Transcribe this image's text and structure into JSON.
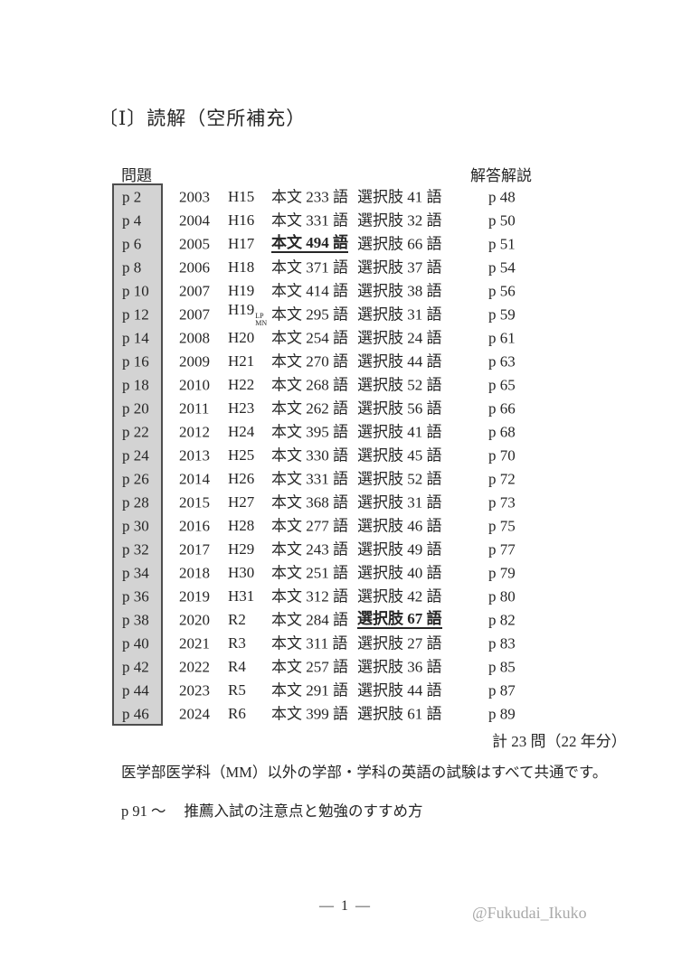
{
  "page": {
    "title": "〔Ⅰ〕読解（空所補充）",
    "problem_header": "問題",
    "answer_header": "解答解説",
    "total": "計 23 問（22 年分）",
    "note": "医学部医学科（MM）以外の学部・学科の英語の試験はすべて共通です。",
    "recommend_page": "p 91 ～",
    "recommend_title": "推薦入試の注意点と勉強のすすめ方",
    "page_number": "— 1 —",
    "watermark": "@Fukudai_Ikuko"
  },
  "colors": {
    "text": "#262626",
    "box_fill": "#d3d3d3",
    "box_border": "#4d4d4d",
    "watermark": "#a9a9a9"
  },
  "table": {
    "rows": [
      {
        "p": "p 2",
        "year": "2003",
        "era": "H15",
        "main": "本文 233 語",
        "choice": "選択肢 41 語",
        "ans": "p 48"
      },
      {
        "p": "p 4",
        "year": "2004",
        "era": "H16",
        "main": "本文 331 語",
        "choice": "選択肢 32 語",
        "ans": "p 50"
      },
      {
        "p": "p 6",
        "year": "2005",
        "era": "H17",
        "main": "本文 494 語",
        "main_emphasis": true,
        "choice": "選択肢 66 語",
        "ans": "p 51"
      },
      {
        "p": "p 8",
        "year": "2006",
        "era": "H18",
        "main": "本文 371 語",
        "choice": "選択肢 37 語",
        "ans": "p 54"
      },
      {
        "p": "p 10",
        "year": "2007",
        "era": "H19",
        "main": "本文 414 語",
        "choice": "選択肢 38 語",
        "ans": "p 56"
      },
      {
        "p": "p 12",
        "year": "2007",
        "era": "H19",
        "era_sup": "LP",
        "era_sub": "MN",
        "main": "本文 295 語",
        "choice": "選択肢 31 語",
        "ans": "p 59"
      },
      {
        "p": "p 14",
        "year": "2008",
        "era": "H20",
        "main": "本文 254 語",
        "choice": "選択肢 24 語",
        "ans": "p 61"
      },
      {
        "p": "p 16",
        "year": "2009",
        "era": "H21",
        "main": "本文 270 語",
        "choice": "選択肢 44 語",
        "ans": "p 63"
      },
      {
        "p": "p 18",
        "year": "2010",
        "era": "H22",
        "main": "本文 268 語",
        "choice": "選択肢 52 語",
        "ans": "p 65"
      },
      {
        "p": "p 20",
        "year": "2011",
        "era": "H23",
        "main": "本文 262 語",
        "choice": "選択肢 56 語",
        "ans": "p 66"
      },
      {
        "p": "p 22",
        "year": "2012",
        "era": "H24",
        "main": "本文 395 語",
        "choice": "選択肢 41 語",
        "ans": "p 68"
      },
      {
        "p": "p 24",
        "year": "2013",
        "era": "H25",
        "main": "本文 330 語",
        "choice": "選択肢 45 語",
        "ans": "p 70"
      },
      {
        "p": "p 26",
        "year": "2014",
        "era": "H26",
        "main": "本文 331 語",
        "choice": "選択肢 52 語",
        "ans": "p 72"
      },
      {
        "p": "p 28",
        "year": "2015",
        "era": "H27",
        "main": "本文 368 語",
        "choice": "選択肢 31 語",
        "ans": "p 73"
      },
      {
        "p": "p 30",
        "year": "2016",
        "era": "H28",
        "main": "本文 277 語",
        "choice": "選択肢 46 語",
        "ans": "p 75"
      },
      {
        "p": "p 32",
        "year": "2017",
        "era": "H29",
        "main": "本文 243 語",
        "choice": "選択肢 49 語",
        "ans": "p 77"
      },
      {
        "p": "p 34",
        "year": "2018",
        "era": "H30",
        "main": "本文 251 語",
        "choice": "選択肢 40 語",
        "ans": "p 79"
      },
      {
        "p": "p 36",
        "year": "2019",
        "era": "H31",
        "main": "本文 312 語",
        "choice": "選択肢 42 語",
        "ans": "p 80"
      },
      {
        "p": "p 38",
        "year": "2020",
        "era": "R2",
        "main": "本文 284 語",
        "choice": "選択肢 67 語",
        "choice_emphasis": true,
        "ans": "p 82"
      },
      {
        "p": "p 40",
        "year": "2021",
        "era": "R3",
        "main": "本文 311 語",
        "choice": "選択肢 27 語",
        "ans": "p 83"
      },
      {
        "p": "p 42",
        "year": "2022",
        "era": "R4",
        "main": "本文 257 語",
        "choice": "選択肢 36 語",
        "ans": "p 85"
      },
      {
        "p": "p 44",
        "year": "2023",
        "era": "R5",
        "main": "本文 291 語",
        "choice": "選択肢 44 語",
        "ans": "p 87"
      },
      {
        "p": "p 46",
        "year": "2024",
        "era": "R6",
        "main": "本文 399 語",
        "choice": "選択肢 61 語",
        "ans": "p 89"
      }
    ]
  }
}
